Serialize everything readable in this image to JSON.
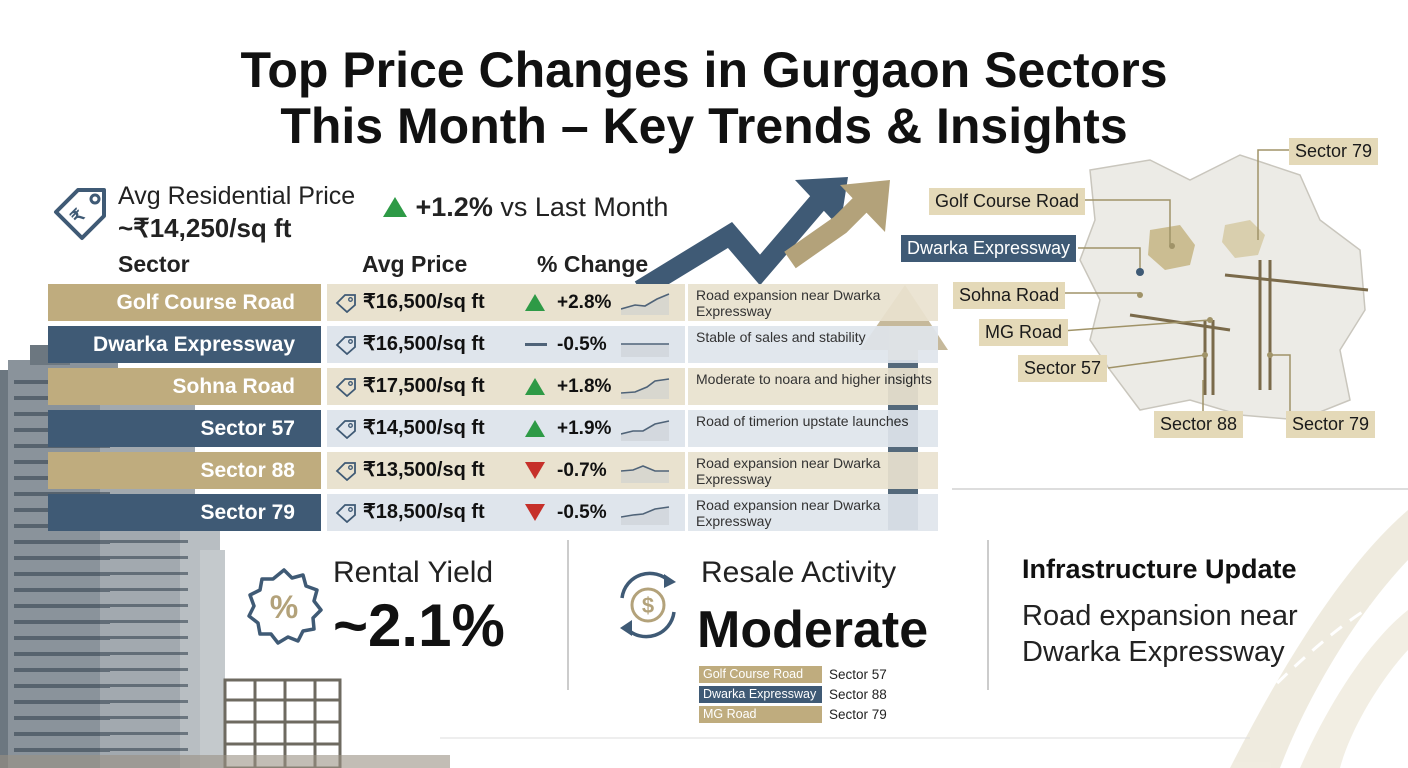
{
  "title": {
    "line1": "Top Price Changes in Gurgaon Sectors",
    "line2": "This Month – Key Trends & Insights"
  },
  "summary": {
    "avg_label": "Avg Residential Price",
    "avg_value": "~₹14,250/sq ft",
    "change_value": "+1.2%",
    "change_suffix": " vs Last Month"
  },
  "table": {
    "headers": [
      "Sector",
      "Avg Price",
      "% Change"
    ],
    "rows": [
      {
        "sector": "Golf Course Road",
        "price": "₹16,500/sq ft",
        "change": "+2.8%",
        "note": "Road expansion near Dwarka Expressway"
      },
      {
        "sector": "Dwarka Expressway",
        "price": "₹16,500/sq ft",
        "change": "-0.5%",
        "note": "Stable of sales and stability"
      },
      {
        "sector": "Sohna Road",
        "price": "₹17,500/sq ft",
        "change": "+1.8%",
        "note": "Moderate to noara and higher insights"
      },
      {
        "sector": "Sector 57",
        "price": "₹14,500/sq ft",
        "change": "+1.9%",
        "note": "Road of timerion upstate launches"
      },
      {
        "sector": "Sector 88",
        "price": "₹13,500/sq ft",
        "change": "-0.7%",
        "note": "Road expansion near Dwarka Expressway"
      },
      {
        "sector": "Sector 79",
        "price": "₹18,500/sq ft",
        "change": "-0.5%",
        "note": "Road expansion near Dwarka Expressway"
      }
    ]
  },
  "rental": {
    "label": "Rental Yield",
    "value": "~2.1%"
  },
  "resale": {
    "label": "Resale Activity",
    "value": "Moderate",
    "legend": [
      {
        "chip": "Golf Course Road",
        "text": "Sector 57"
      },
      {
        "chip": "Dwarka Expressway",
        "text": "Sector 88"
      },
      {
        "chip": "MG Road",
        "text": "Sector 79"
      }
    ]
  },
  "infra": {
    "title": "Infrastructure Update",
    "line1": "Road expansion near",
    "line2": "Dwarka Expressway"
  },
  "map": {
    "labels": [
      "Sector 79",
      "Golf Course Road",
      "Dwarka Expressway",
      "Sohna Road",
      "MG Road",
      "Sector 57",
      "Sector 88",
      "Sector 79"
    ]
  },
  "colors": {
    "gold": "#bfac7e",
    "gold_light": "#e9e2cf",
    "navy": "#3f5a75",
    "navy_light": "#dfe5ec",
    "up": "#2e9a46",
    "down": "#c6302a",
    "flat": "#4f6378"
  },
  "icons": [
    "price-tag-icon",
    "up-triangle-icon",
    "down-triangle-icon",
    "flat-dash-icon",
    "percent-badge-icon",
    "dollar-cycle-icon",
    "trend-arrow-icon",
    "construction-crane-icon",
    "building-icon",
    "highway-icon"
  ]
}
